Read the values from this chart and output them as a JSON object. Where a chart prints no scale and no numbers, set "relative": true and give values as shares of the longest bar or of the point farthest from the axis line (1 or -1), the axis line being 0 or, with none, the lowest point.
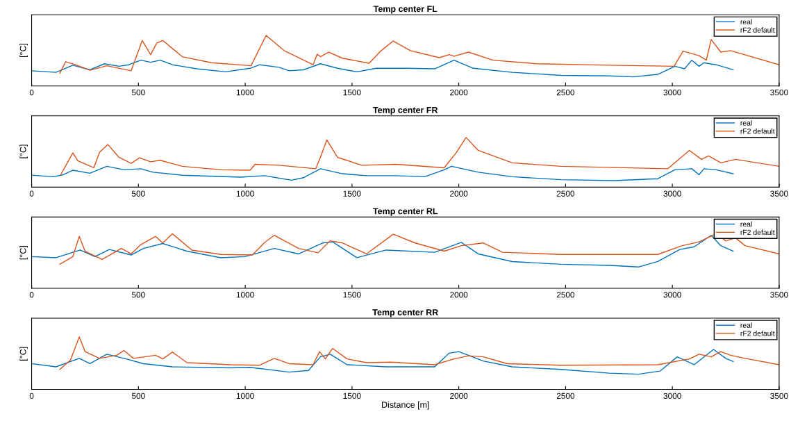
{
  "chart_data": [
    {
      "type": "line",
      "title": "Temp center FL",
      "ylabel": "[°C]",
      "relative": true,
      "xlim": [
        0,
        3500
      ],
      "xticks": [
        0,
        500,
        1000,
        1500,
        2000,
        2500,
        3000,
        3500
      ],
      "tick_labels": "x",
      "legend": "top right",
      "grid": false,
      "series": [
        {
          "name": "real",
          "color": "#0072bd",
          "x": [
            0,
            114,
            193,
            273,
            341,
            409,
            455,
            511,
            557,
            602,
            659,
            773,
            909,
            1023,
            1068,
            1159,
            1205,
            1273,
            1352,
            1432,
            1523,
            1614,
            1750,
            1887,
            1978,
            2068,
            2250,
            2478,
            2705,
            2818,
            2932,
            3012,
            3057,
            3091,
            3125,
            3148,
            3205,
            3285
          ],
          "values": [
            0.3,
            0.27,
            0.41,
            0.32,
            0.44,
            0.39,
            0.42,
            0.51,
            0.47,
            0.51,
            0.42,
            0.34,
            0.28,
            0.35,
            0.42,
            0.37,
            0.3,
            0.32,
            0.44,
            0.35,
            0.28,
            0.35,
            0.35,
            0.34,
            0.51,
            0.35,
            0.27,
            0.21,
            0.2,
            0.18,
            0.23,
            0.39,
            0.34,
            0.51,
            0.39,
            0.46,
            0.42,
            0.32
          ]
        },
        {
          "name": "rF2 default",
          "color": "#d95319",
          "x": [
            132,
            159,
            205,
            273,
            352,
            466,
            518,
            557,
            586,
            614,
            705,
            841,
            1027,
            1098,
            1182,
            1318,
            1337,
            1352,
            1391,
            1455,
            1580,
            1637,
            1693,
            1773,
            1909,
            1955,
            1978,
            2046,
            2159,
            2364,
            2705,
            3008,
            3050,
            3125,
            3159,
            3182,
            3227,
            3273,
            3500
          ],
          "values": [
            0.25,
            0.48,
            0.42,
            0.31,
            0.4,
            0.3,
            0.9,
            0.62,
            0.85,
            0.9,
            0.58,
            0.46,
            0.4,
            1.0,
            0.7,
            0.42,
            0.63,
            0.58,
            0.67,
            0.55,
            0.45,
            0.7,
            0.89,
            0.7,
            0.56,
            0.62,
            0.59,
            0.67,
            0.51,
            0.44,
            0.41,
            0.39,
            0.69,
            0.6,
            0.51,
            0.92,
            0.67,
            0.7,
            0.42
          ]
        }
      ]
    },
    {
      "type": "line",
      "title": "Temp center FR",
      "ylabel": "[°C]",
      "relative": true,
      "xlim": [
        0,
        3500
      ],
      "xticks": [
        0,
        500,
        1000,
        1500,
        2000,
        2500,
        3000,
        3500
      ],
      "tick_labels": "x",
      "legend": "top right",
      "grid": false,
      "series": [
        {
          "name": "real",
          "color": "#0072bd",
          "x": [
            0,
            102,
            148,
            193,
            273,
            352,
            432,
            511,
            568,
            705,
            977,
            1091,
            1216,
            1273,
            1352,
            1455,
            1568,
            1705,
            1841,
            1932,
            1966,
            2091,
            2250,
            2478,
            2728,
            2932,
            3012,
            3091,
            3125,
            3148,
            3205,
            3285
          ],
          "values": [
            0.24,
            0.21,
            0.25,
            0.34,
            0.28,
            0.42,
            0.35,
            0.37,
            0.3,
            0.24,
            0.2,
            0.23,
            0.14,
            0.19,
            0.37,
            0.27,
            0.23,
            0.23,
            0.21,
            0.35,
            0.42,
            0.3,
            0.21,
            0.15,
            0.13,
            0.17,
            0.35,
            0.37,
            0.25,
            0.37,
            0.35,
            0.27
          ]
        },
        {
          "name": "rF2 default",
          "color": "#d95319",
          "x": [
            136,
            193,
            216,
            291,
            318,
            357,
            409,
            466,
            505,
            557,
            602,
            705,
            886,
            1023,
            1046,
            1159,
            1330,
            1352,
            1382,
            1432,
            1546,
            1705,
            1932,
            1989,
            2034,
            2091,
            2250,
            2478,
            2978,
            3080,
            3136,
            3170,
            3227,
            3296,
            3500
          ],
          "values": [
            0.25,
            0.69,
            0.53,
            0.39,
            0.7,
            0.86,
            0.6,
            0.48,
            0.59,
            0.51,
            0.54,
            0.42,
            0.35,
            0.34,
            0.46,
            0.44,
            0.37,
            0.6,
            0.95,
            0.6,
            0.44,
            0.46,
            0.39,
            0.7,
            1.0,
            0.74,
            0.49,
            0.42,
            0.37,
            0.74,
            0.56,
            0.63,
            0.49,
            0.56,
            0.42
          ]
        }
      ]
    },
    {
      "type": "line",
      "title": "Temp center RL",
      "ylabel": "[°C]",
      "relative": true,
      "xlim": [
        0,
        3500
      ],
      "xticks": [
        0,
        500,
        1000,
        1500,
        2000,
        2500,
        3000,
        3500
      ],
      "tick_labels": "x",
      "legend": "top right",
      "grid": false,
      "series": [
        {
          "name": "real",
          "color": "#0072bd",
          "x": [
            0,
            114,
            227,
            296,
            364,
            466,
            523,
            614,
            727,
            886,
            1000,
            1136,
            1250,
            1364,
            1409,
            1523,
            1659,
            1887,
            2012,
            2091,
            2250,
            2478,
            2705,
            2841,
            2932,
            3035,
            3102,
            3182,
            3227,
            3285
          ],
          "values": [
            0.58,
            0.56,
            0.7,
            0.58,
            0.71,
            0.61,
            0.73,
            0.82,
            0.68,
            0.56,
            0.58,
            0.73,
            0.63,
            0.83,
            0.85,
            0.56,
            0.7,
            0.66,
            0.84,
            0.63,
            0.49,
            0.44,
            0.42,
            0.39,
            0.49,
            0.71,
            0.76,
            0.97,
            0.78,
            0.68
          ]
        },
        {
          "name": "rF2 default",
          "color": "#d95319",
          "x": [
            132,
            193,
            223,
            250,
            330,
            420,
            466,
            511,
            580,
            614,
            659,
            750,
            886,
            1034,
            1091,
            1136,
            1250,
            1341,
            1398,
            1455,
            1568,
            1693,
            1796,
            1932,
            2012,
            2114,
            2205,
            2478,
            2932,
            3046,
            3125,
            3205,
            3250,
            3296,
            3341,
            3500
          ],
          "values": [
            0.44,
            0.58,
            0.95,
            0.68,
            0.53,
            0.73,
            0.63,
            0.8,
            0.95,
            0.83,
            1.0,
            0.7,
            0.62,
            0.61,
            0.84,
            0.97,
            0.73,
            0.65,
            0.87,
            0.83,
            0.63,
            0.99,
            0.83,
            0.68,
            0.78,
            0.83,
            0.66,
            0.62,
            0.62,
            0.78,
            0.85,
            1.0,
            0.87,
            0.92,
            0.78,
            0.63
          ]
        }
      ]
    },
    {
      "type": "line",
      "title": "Temp center RR",
      "xlabel": "Distance [m]",
      "ylabel": "[°C]",
      "relative": true,
      "xlim": [
        0,
        3500
      ],
      "xticks": [
        0,
        500,
        1000,
        1500,
        2000,
        2500,
        3000,
        3500
      ],
      "tick_labels": "x",
      "legend": "top right",
      "grid": false,
      "series": [
        {
          "name": "real",
          "color": "#0072bd",
          "x": [
            0,
            114,
            223,
            273,
            352,
            443,
            523,
            659,
            932,
            1023,
            1205,
            1296,
            1352,
            1398,
            1477,
            1659,
            1887,
            1955,
            2000,
            2114,
            2250,
            2478,
            2705,
            2841,
            2943,
            3023,
            3102,
            3193,
            3250,
            3285
          ],
          "values": [
            0.49,
            0.43,
            0.59,
            0.49,
            0.67,
            0.58,
            0.49,
            0.43,
            0.41,
            0.42,
            0.33,
            0.36,
            0.62,
            0.67,
            0.47,
            0.43,
            0.43,
            0.69,
            0.72,
            0.54,
            0.43,
            0.38,
            0.31,
            0.29,
            0.35,
            0.62,
            0.47,
            0.76,
            0.59,
            0.53
          ]
        },
        {
          "name": "rF2 default",
          "color": "#d95319",
          "x": [
            132,
            182,
            223,
            250,
            318,
            398,
            432,
            477,
            580,
            614,
            659,
            727,
            932,
            1068,
            1136,
            1205,
            1318,
            1348,
            1375,
            1409,
            1477,
            1568,
            1682,
            1887,
            1978,
            2046,
            2114,
            2227,
            2478,
            2932,
            3080,
            3125,
            3182,
            3227,
            3273,
            3341,
            3500
          ],
          "values": [
            0.38,
            0.56,
            1.0,
            0.72,
            0.59,
            0.65,
            0.74,
            0.59,
            0.65,
            0.58,
            0.71,
            0.51,
            0.47,
            0.46,
            0.59,
            0.49,
            0.47,
            0.72,
            0.58,
            0.78,
            0.58,
            0.51,
            0.52,
            0.47,
            0.58,
            0.64,
            0.62,
            0.49,
            0.46,
            0.47,
            0.58,
            0.67,
            0.62,
            0.72,
            0.65,
            0.59,
            0.47
          ]
        }
      ]
    }
  ]
}
